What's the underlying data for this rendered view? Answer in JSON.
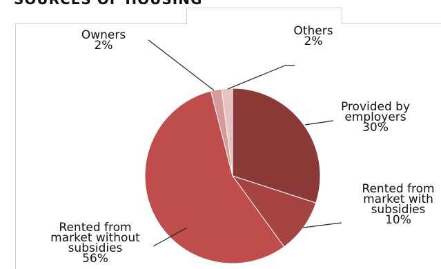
{
  "heading": "SOURCES OF HOUSING",
  "chart_data": {
    "type": "pie",
    "title": "",
    "slices": [
      {
        "label_lines": [
          "Provided by",
          "employers",
          "30%"
        ],
        "value": 30,
        "color": "#8b3a38"
      },
      {
        "label_lines": [
          "Rented from",
          "market with",
          "subsidies",
          "10%"
        ],
        "value": 10,
        "color": "#a64443"
      },
      {
        "label_lines": [
          "Rented from",
          "market without",
          "subsidies",
          "56%"
        ],
        "value": 56,
        "color": "#bf4d4b"
      },
      {
        "label_lines": [
          "Owners",
          "2%"
        ],
        "value": 2,
        "color": "#d79a98"
      },
      {
        "label_lines": [
          "Others",
          "2%"
        ],
        "value": 2,
        "color": "#e6c3c2"
      }
    ],
    "legend": "none"
  }
}
